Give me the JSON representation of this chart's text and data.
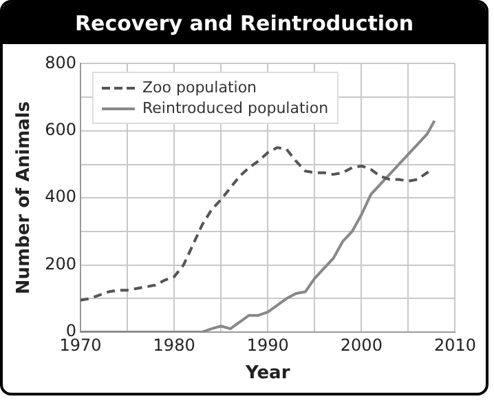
{
  "chart_data": {
    "type": "line",
    "title": "Recovery and Reintroduction",
    "xlabel": "Year",
    "ylabel": "Number of Animals",
    "xlim": [
      1970,
      2010
    ],
    "xticks": [
      1970,
      {
        "value": 1975,
        "label": null
      },
      1980,
      {
        "value": 1985,
        "label": null
      },
      1990,
      {
        "value": 1995,
        "label": null
      },
      2000,
      {
        "value": 2005,
        "label": null
      },
      2010
    ],
    "ylim": [
      0,
      800
    ],
    "yticks": [
      0,
      {
        "value": 100,
        "label": null
      },
      200,
      {
        "value": 300,
        "label": null
      },
      400,
      {
        "value": 500,
        "label": null
      },
      600,
      {
        "value": 700,
        "label": null
      },
      800
    ],
    "grid": true,
    "legend": "top left",
    "marker": "none",
    "series": [
      {
        "name": "Zoo population",
        "color": "#555555",
        "line_style": "dashed",
        "x": [
          1970,
          1971,
          1972,
          1973,
          1974,
          1975,
          1976,
          1977,
          1978,
          1979,
          1980,
          1981,
          1982,
          1983,
          1984,
          1985,
          1986,
          1987,
          1988,
          1989,
          1990,
          1991,
          1992,
          1993,
          1994,
          1995,
          1996,
          1997,
          1998,
          1999,
          2000,
          2001,
          2002,
          2003,
          2004,
          2005,
          2006,
          2007.5
        ],
        "values": [
          95,
          100,
          110,
          120,
          125,
          125,
          130,
          135,
          140,
          155,
          165,
          200,
          260,
          320,
          365,
          395,
          430,
          465,
          490,
          510,
          535,
          550,
          545,
          510,
          480,
          475,
          475,
          470,
          475,
          490,
          495,
          485,
          465,
          455,
          455,
          450,
          455,
          485
        ]
      },
      {
        "name": "Reintroduced population",
        "color": "#888888",
        "line_style": "solid",
        "x": [
          1970,
          1983,
          1984,
          1985,
          1986,
          1987,
          1988,
          1989,
          1990,
          1991,
          1992,
          1993,
          1994,
          1995,
          1996,
          1997,
          1998,
          1999,
          2000,
          2001,
          2002,
          2003,
          2004,
          2005,
          2006,
          2007,
          2007.8
        ],
        "values": [
          0,
          0,
          10,
          18,
          10,
          30,
          50,
          50,
          60,
          80,
          100,
          115,
          120,
          160,
          190,
          220,
          270,
          300,
          350,
          410,
          440,
          470,
          500,
          530,
          560,
          590,
          630
        ]
      }
    ]
  }
}
